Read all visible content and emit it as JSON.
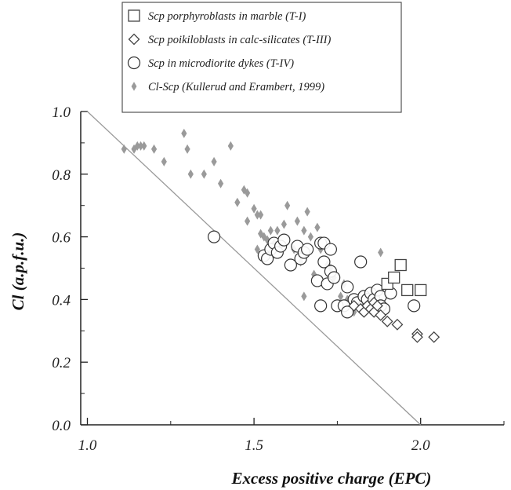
{
  "chart_data": {
    "type": "scatter",
    "title": "",
    "xlabel": "Excess positive charge (EPC)",
    "ylabel": "Cl (a.p.f.u.)",
    "xlim": [
      0.98,
      2.25
    ],
    "ylim": [
      0.0,
      1.0
    ],
    "xticks": [
      "1.0",
      "1.5",
      "2.0"
    ],
    "xtick_values": [
      1.0,
      1.5,
      2.0
    ],
    "yticks": [
      "0.0",
      "0.2",
      "0.4",
      "0.6",
      "0.8",
      "1.0"
    ],
    "ytick_values": [
      0.0,
      0.2,
      0.4,
      0.6,
      0.8,
      1.0
    ],
    "grid": false,
    "legend_position": "top",
    "reference_line": {
      "from": [
        1.0,
        1.0
      ],
      "to": [
        2.0,
        0.0
      ],
      "color": "#999999"
    },
    "series": [
      {
        "name": "Scp porphyroblasts in marble (T-I)",
        "marker": "square",
        "color": "#444444",
        "points": [
          [
            1.9,
            0.45
          ],
          [
            1.92,
            0.47
          ],
          [
            1.94,
            0.51
          ],
          [
            1.96,
            0.43
          ],
          [
            2.0,
            0.43
          ]
        ]
      },
      {
        "name": "Scp poikiloblasts in calc-silicates (T-III)",
        "marker": "diamond",
        "color": "#444444",
        "points": [
          [
            1.8,
            0.38
          ],
          [
            1.82,
            0.37
          ],
          [
            1.83,
            0.36
          ],
          [
            1.84,
            0.38
          ],
          [
            1.85,
            0.37
          ],
          [
            1.86,
            0.36
          ],
          [
            1.86,
            0.39
          ],
          [
            1.87,
            0.38
          ],
          [
            1.88,
            0.35
          ],
          [
            1.9,
            0.33
          ],
          [
            1.93,
            0.32
          ],
          [
            1.99,
            0.29
          ],
          [
            1.99,
            0.28
          ],
          [
            2.04,
            0.28
          ]
        ]
      },
      {
        "name": "Scp in microdiorite dykes (T-IV)",
        "marker": "circle",
        "color": "#333333",
        "points": [
          [
            1.38,
            0.6
          ],
          [
            1.53,
            0.54
          ],
          [
            1.54,
            0.53
          ],
          [
            1.55,
            0.56
          ],
          [
            1.56,
            0.58
          ],
          [
            1.57,
            0.55
          ],
          [
            1.58,
            0.57
          ],
          [
            1.59,
            0.59
          ],
          [
            1.61,
            0.51
          ],
          [
            1.63,
            0.57
          ],
          [
            1.64,
            0.53
          ],
          [
            1.65,
            0.55
          ],
          [
            1.66,
            0.56
          ],
          [
            1.69,
            0.46
          ],
          [
            1.7,
            0.58
          ],
          [
            1.71,
            0.58
          ],
          [
            1.71,
            0.52
          ],
          [
            1.72,
            0.45
          ],
          [
            1.73,
            0.49
          ],
          [
            1.73,
            0.56
          ],
          [
            1.74,
            0.47
          ],
          [
            1.7,
            0.38
          ],
          [
            1.75,
            0.38
          ],
          [
            1.77,
            0.38
          ],
          [
            1.78,
            0.44
          ],
          [
            1.78,
            0.36
          ],
          [
            1.8,
            0.4
          ],
          [
            1.81,
            0.39
          ],
          [
            1.82,
            0.52
          ],
          [
            1.83,
            0.41
          ],
          [
            1.84,
            0.4
          ],
          [
            1.85,
            0.42
          ],
          [
            1.86,
            0.4
          ],
          [
            1.87,
            0.43
          ],
          [
            1.88,
            0.41
          ],
          [
            1.88,
            0.38
          ],
          [
            1.89,
            0.37
          ],
          [
            1.91,
            0.42
          ],
          [
            1.98,
            0.38
          ]
        ]
      },
      {
        "name": "Cl-Scp (Kullerud and Erambert, 1999)",
        "marker": "small-diamond-filled",
        "color": "#9a9a9a",
        "points": [
          [
            1.11,
            0.88
          ],
          [
            1.14,
            0.88
          ],
          [
            1.15,
            0.89
          ],
          [
            1.16,
            0.89
          ],
          [
            1.17,
            0.89
          ],
          [
            1.2,
            0.88
          ],
          [
            1.23,
            0.84
          ],
          [
            1.29,
            0.93
          ],
          [
            1.3,
            0.88
          ],
          [
            1.31,
            0.8
          ],
          [
            1.35,
            0.8
          ],
          [
            1.38,
            0.84
          ],
          [
            1.4,
            0.77
          ],
          [
            1.43,
            0.89
          ],
          [
            1.45,
            0.71
          ],
          [
            1.47,
            0.75
          ],
          [
            1.48,
            0.74
          ],
          [
            1.48,
            0.65
          ],
          [
            1.5,
            0.69
          ],
          [
            1.51,
            0.67
          ],
          [
            1.52,
            0.67
          ],
          [
            1.52,
            0.61
          ],
          [
            1.53,
            0.6
          ],
          [
            1.54,
            0.59
          ],
          [
            1.55,
            0.62
          ],
          [
            1.56,
            0.58
          ],
          [
            1.57,
            0.62
          ],
          [
            1.51,
            0.56
          ],
          [
            1.55,
            0.55
          ],
          [
            1.58,
            0.57
          ],
          [
            1.59,
            0.64
          ],
          [
            1.6,
            0.7
          ],
          [
            1.62,
            0.56
          ],
          [
            1.63,
            0.65
          ],
          [
            1.64,
            0.52
          ],
          [
            1.65,
            0.62
          ],
          [
            1.66,
            0.68
          ],
          [
            1.66,
            0.55
          ],
          [
            1.67,
            0.6
          ],
          [
            1.68,
            0.48
          ],
          [
            1.65,
            0.41
          ],
          [
            1.69,
            0.63
          ],
          [
            1.7,
            0.56
          ],
          [
            1.72,
            0.51
          ],
          [
            1.73,
            0.5
          ],
          [
            1.74,
            0.47
          ],
          [
            1.76,
            0.41
          ],
          [
            1.77,
            0.45
          ],
          [
            1.78,
            0.4
          ],
          [
            1.8,
            0.36
          ],
          [
            1.82,
            0.38
          ],
          [
            1.84,
            0.37
          ],
          [
            1.86,
            0.4
          ],
          [
            1.88,
            0.55
          ]
        ]
      }
    ]
  }
}
